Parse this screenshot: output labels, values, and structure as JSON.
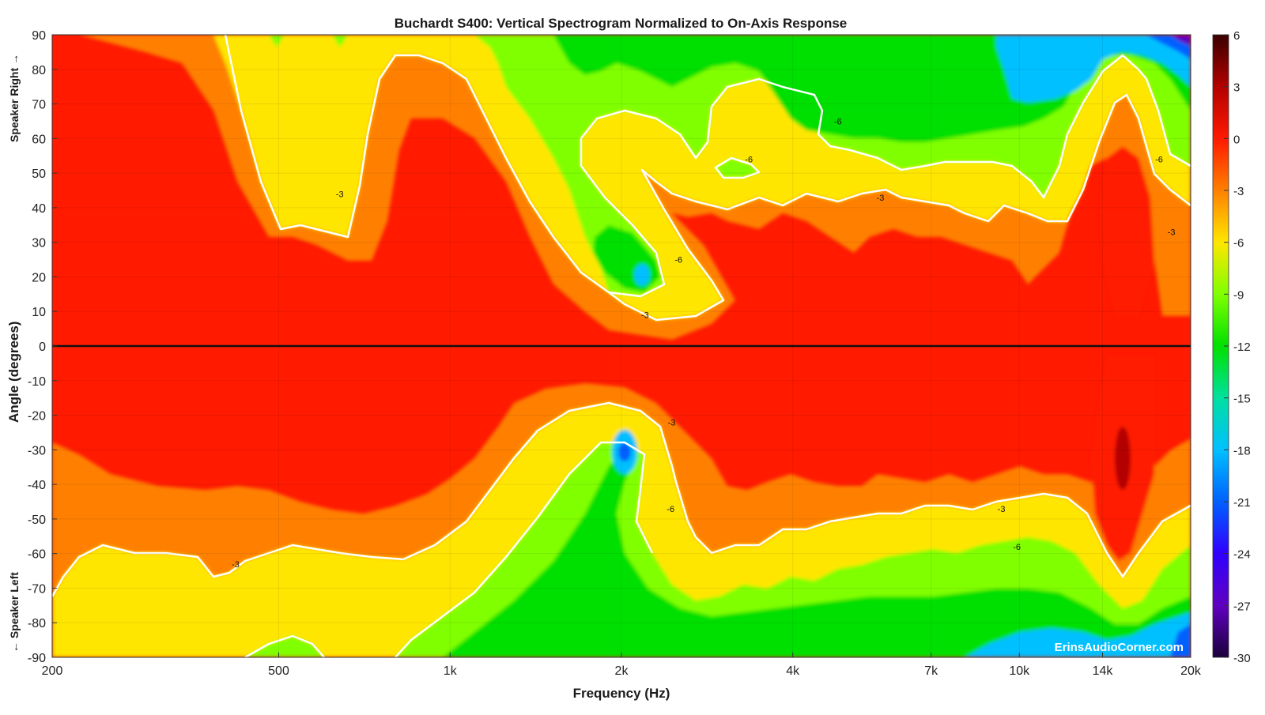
{
  "chart_data": {
    "type": "heatmap",
    "title": "Buchardt S400: Vertical Spectrogram Normalized to On-Axis Response",
    "xlabel": "Frequency (Hz)",
    "ylabel": "Angle (degrees)",
    "ylabel_top": "Speaker Right →",
    "ylabel_bottom": "← Speaker Left",
    "xscale": "log",
    "xlim": [
      200,
      20000
    ],
    "ylim": [
      -90,
      90
    ],
    "x_ticks": [
      {
        "value": 200,
        "label": "200"
      },
      {
        "value": 500,
        "label": "500"
      },
      {
        "value": 1000,
        "label": "1k"
      },
      {
        "value": 2000,
        "label": "2k"
      },
      {
        "value": 4000,
        "label": "4k"
      },
      {
        "value": 7000,
        "label": "7k"
      },
      {
        "value": 10000,
        "label": "10k"
      },
      {
        "value": 14000,
        "label": "14k"
      },
      {
        "value": 20000,
        "label": "20k"
      }
    ],
    "y_ticks": [
      90,
      80,
      70,
      60,
      50,
      40,
      30,
      20,
      10,
      0,
      -10,
      -20,
      -30,
      -40,
      -50,
      -60,
      -70,
      -80,
      -90
    ],
    "colorbar": {
      "range": [
        -30,
        6
      ],
      "ticks": [
        6,
        3,
        0,
        -3,
        -6,
        -9,
        -12,
        -15,
        -18,
        -21,
        -24,
        -27,
        -30
      ],
      "colormap": [
        "#3a0000",
        "#b30000",
        "#ff1a00",
        "#ff8000",
        "#ffe600",
        "#80ff00",
        "#00e000",
        "#00e0a0",
        "#00c0ff",
        "#0060ff",
        "#3000ff",
        "#6000c0",
        "#1a003a"
      ]
    },
    "contour_levels": [
      -3,
      -6
    ],
    "contour_labels": [
      {
        "freq": 640,
        "angle": 44,
        "text": "-3"
      },
      {
        "freq": 3350,
        "angle": 54,
        "text": "-6"
      },
      {
        "freq": 4800,
        "angle": 65,
        "text": "-6"
      },
      {
        "freq": 5700,
        "angle": 43,
        "text": "-3"
      },
      {
        "freq": 2520,
        "angle": 25,
        "text": "-6"
      },
      {
        "freq": 2200,
        "angle": 9,
        "text": "-3"
      },
      {
        "freq": 17600,
        "angle": 54,
        "text": "-6"
      },
      {
        "freq": 18500,
        "angle": 33,
        "text": "-3"
      },
      {
        "freq": 2450,
        "angle": -22,
        "text": "-3"
      },
      {
        "freq": 2440,
        "angle": -47,
        "text": "-6"
      },
      {
        "freq": 9300,
        "angle": -47,
        "text": "-3"
      },
      {
        "freq": 9900,
        "angle": -58,
        "text": "-6"
      },
      {
        "freq": 420,
        "angle": -63,
        "text": "-3"
      }
    ],
    "reference_line": {
      "angle": 0
    }
  },
  "watermark": "ErinsAudioCorner.com"
}
